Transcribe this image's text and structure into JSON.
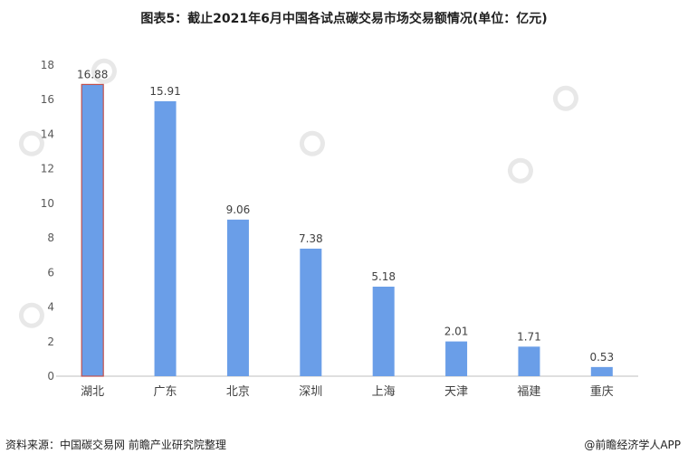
{
  "chart_data": {
    "type": "bar",
    "title": "图表5：截止2021年6月中国各试点碳交易市场交易额情况(单位：亿元)",
    "categories": [
      "湖北",
      "广东",
      "北京",
      "深圳",
      "上海",
      "天津",
      "福建",
      "重庆"
    ],
    "values": [
      16.88,
      15.91,
      9.06,
      7.38,
      5.18,
      2.01,
      1.71,
      0.53
    ],
    "value_labels": [
      "16.88",
      "15.91",
      "9.06",
      "7.38",
      "5.18",
      "2.01",
      "1.71",
      "0.53"
    ],
    "ylim": [
      0,
      18
    ],
    "yticks": [
      0,
      2,
      4,
      6,
      8,
      10,
      12,
      14,
      16,
      18
    ],
    "grid": false,
    "bar_color": "#6a9ee8",
    "highlight_index": 0,
    "highlight_stroke": "#c0504d"
  },
  "footer": {
    "source": "资料来源：中国碳交易网 前瞻产业研究院整理",
    "brand": "@前瞻经济学人APP"
  },
  "watermark": {
    "text": "前瞻产业研究院"
  }
}
